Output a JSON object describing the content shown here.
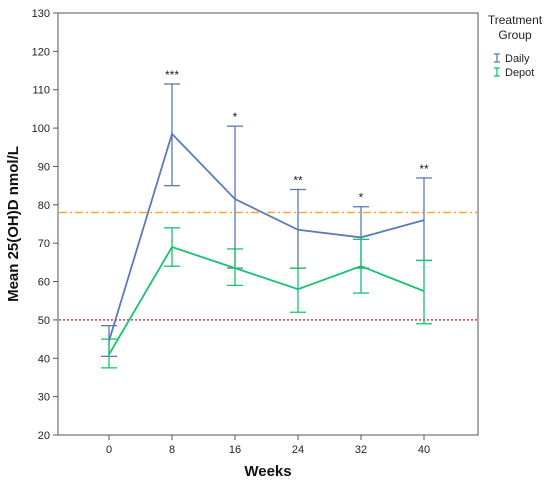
{
  "chart_data": {
    "type": "line",
    "xlabel": "Weeks",
    "ylabel": "Mean 25(OH)D nmol/L",
    "categories": [
      "0",
      "8",
      "16",
      "24",
      "32",
      "40"
    ],
    "ylim": [
      20,
      130
    ],
    "yticks": [
      20,
      30,
      40,
      50,
      60,
      70,
      80,
      90,
      100,
      110,
      120,
      130
    ],
    "grid": false,
    "legend": {
      "title_lines": [
        "Treatment",
        "Group"
      ],
      "placement": "right"
    },
    "series": [
      {
        "name": "Daily",
        "color": "#5b7bb4",
        "values": [
          44.5,
          98.5,
          81.5,
          73.5,
          71.5,
          76
        ],
        "err_low": [
          40.5,
          85,
          63.5,
          63.5,
          63.5,
          65.5
        ],
        "err_high": [
          48.5,
          111.5,
          100.5,
          84,
          79.5,
          87
        ]
      },
      {
        "name": "Depot",
        "color": "#17c36e",
        "values": [
          41,
          69,
          63.5,
          58,
          64,
          57.5
        ],
        "err_low": [
          37.5,
          64,
          59,
          52,
          57,
          49
        ],
        "err_high": [
          45,
          74,
          68.5,
          63.5,
          71,
          65.5
        ]
      }
    ],
    "significance": [
      "",
      "***",
      "*",
      "**",
      "*",
      "**"
    ],
    "reference_lines": [
      {
        "value": 78,
        "color": "#f0a93a",
        "style": "dash-dot"
      },
      {
        "value": 50,
        "color": "#d9413e",
        "style": "dotted"
      }
    ]
  }
}
